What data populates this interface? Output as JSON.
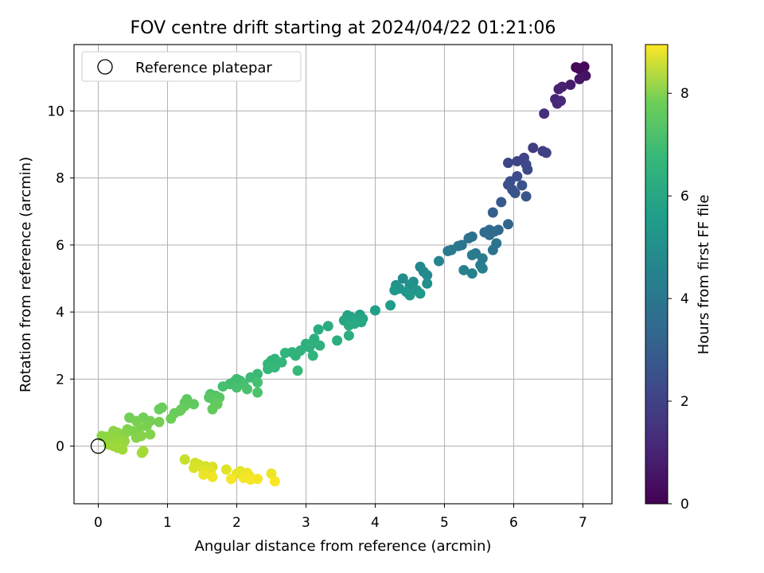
{
  "chart_data": {
    "type": "scatter",
    "title": "FOV centre drift starting at 2024/04/22 01:21:06",
    "xlabel": "Angular distance from reference (arcmin)",
    "ylabel": "Rotation from reference (arcmin)",
    "xlim": [
      -0.35,
      7.42
    ],
    "ylim": [
      -1.72,
      11.98
    ],
    "xticks": [
      0,
      1,
      2,
      3,
      4,
      5,
      6,
      7
    ],
    "yticks": [
      0,
      2,
      4,
      6,
      8,
      10
    ],
    "grid": true,
    "legend": {
      "position": "top-left",
      "entries": [
        "Reference platepar"
      ]
    },
    "reference_point": {
      "x": 0,
      "y": 0,
      "label": "Reference platepar"
    },
    "colorbar": {
      "label": "Hours from first FF file",
      "colormap": "viridis",
      "range": [
        0,
        8.95
      ],
      "ticks": [
        0,
        2,
        4,
        6,
        8
      ]
    },
    "points": [
      {
        "x": 6.9,
        "y": 11.3,
        "c": 0.15
      },
      {
        "x": 6.93,
        "y": 11.28,
        "c": 0.18
      },
      {
        "x": 7.02,
        "y": 11.32,
        "c": 0.2
      },
      {
        "x": 6.95,
        "y": 11.25,
        "c": 0.22
      },
      {
        "x": 7.04,
        "y": 11.05,
        "c": 0.45
      },
      {
        "x": 6.95,
        "y": 10.95,
        "c": 0.5
      },
      {
        "x": 6.82,
        "y": 10.78,
        "c": 0.7
      },
      {
        "x": 6.7,
        "y": 10.72,
        "c": 0.8
      },
      {
        "x": 6.65,
        "y": 10.65,
        "c": 0.85
      },
      {
        "x": 6.6,
        "y": 10.35,
        "c": 0.95
      },
      {
        "x": 6.63,
        "y": 10.22,
        "c": 1.0
      },
      {
        "x": 6.68,
        "y": 10.3,
        "c": 1.05
      },
      {
        "x": 6.44,
        "y": 9.92,
        "c": 1.2
      },
      {
        "x": 6.28,
        "y": 8.9,
        "c": 1.6
      },
      {
        "x": 6.42,
        "y": 8.8,
        "c": 1.7
      },
      {
        "x": 6.47,
        "y": 8.75,
        "c": 1.75
      },
      {
        "x": 6.15,
        "y": 8.6,
        "c": 1.8
      },
      {
        "x": 6.05,
        "y": 8.5,
        "c": 1.85
      },
      {
        "x": 5.92,
        "y": 8.45,
        "c": 1.9
      },
      {
        "x": 6.18,
        "y": 8.4,
        "c": 1.95
      },
      {
        "x": 6.2,
        "y": 8.25,
        "c": 2.0
      },
      {
        "x": 6.05,
        "y": 8.05,
        "c": 2.1
      },
      {
        "x": 5.95,
        "y": 7.9,
        "c": 2.15
      },
      {
        "x": 5.92,
        "y": 7.8,
        "c": 2.2
      },
      {
        "x": 6.12,
        "y": 7.78,
        "c": 2.25
      },
      {
        "x": 5.98,
        "y": 7.65,
        "c": 2.3
      },
      {
        "x": 6.02,
        "y": 7.55,
        "c": 2.35
      },
      {
        "x": 6.18,
        "y": 7.45,
        "c": 2.4
      },
      {
        "x": 5.82,
        "y": 7.28,
        "c": 2.5
      },
      {
        "x": 5.7,
        "y": 6.97,
        "c": 2.7
      },
      {
        "x": 5.92,
        "y": 6.62,
        "c": 2.9
      },
      {
        "x": 5.78,
        "y": 6.45,
        "c": 3.0
      },
      {
        "x": 5.65,
        "y": 6.45,
        "c": 3.05
      },
      {
        "x": 5.58,
        "y": 6.38,
        "c": 3.1
      },
      {
        "x": 5.65,
        "y": 6.3,
        "c": 3.15
      },
      {
        "x": 5.72,
        "y": 6.4,
        "c": 3.1
      },
      {
        "x": 5.4,
        "y": 6.25,
        "c": 3.3
      },
      {
        "x": 5.35,
        "y": 6.2,
        "c": 3.35
      },
      {
        "x": 5.25,
        "y": 6.0,
        "c": 3.45
      },
      {
        "x": 5.2,
        "y": 5.97,
        "c": 3.5
      },
      {
        "x": 5.75,
        "y": 6.05,
        "c": 3.4
      },
      {
        "x": 5.7,
        "y": 5.85,
        "c": 3.45
      },
      {
        "x": 5.1,
        "y": 5.85,
        "c": 3.6
      },
      {
        "x": 5.05,
        "y": 5.82,
        "c": 3.62
      },
      {
        "x": 5.45,
        "y": 5.75,
        "c": 3.65
      },
      {
        "x": 5.4,
        "y": 5.7,
        "c": 3.7
      },
      {
        "x": 5.55,
        "y": 5.6,
        "c": 3.75
      },
      {
        "x": 5.52,
        "y": 5.4,
        "c": 3.8
      },
      {
        "x": 5.55,
        "y": 5.3,
        "c": 3.85
      },
      {
        "x": 5.28,
        "y": 5.25,
        "c": 3.9
      },
      {
        "x": 5.4,
        "y": 5.15,
        "c": 3.95
      },
      {
        "x": 4.92,
        "y": 5.52,
        "c": 4.05
      },
      {
        "x": 4.65,
        "y": 5.35,
        "c": 4.15
      },
      {
        "x": 4.7,
        "y": 5.2,
        "c": 4.2
      },
      {
        "x": 4.75,
        "y": 5.1,
        "c": 4.25
      },
      {
        "x": 4.4,
        "y": 5.0,
        "c": 4.35
      },
      {
        "x": 4.55,
        "y": 4.9,
        "c": 4.4
      },
      {
        "x": 4.75,
        "y": 4.85,
        "c": 4.45
      },
      {
        "x": 4.5,
        "y": 4.8,
        "c": 4.5
      },
      {
        "x": 4.3,
        "y": 4.8,
        "c": 4.55
      },
      {
        "x": 4.35,
        "y": 4.7,
        "c": 4.6
      },
      {
        "x": 4.6,
        "y": 4.65,
        "c": 4.65
      },
      {
        "x": 4.45,
        "y": 4.6,
        "c": 4.7
      },
      {
        "x": 4.28,
        "y": 4.65,
        "c": 4.7
      },
      {
        "x": 4.65,
        "y": 4.55,
        "c": 4.75
      },
      {
        "x": 4.5,
        "y": 4.5,
        "c": 4.8
      },
      {
        "x": 4.22,
        "y": 4.2,
        "c": 4.95
      },
      {
        "x": 4.0,
        "y": 4.05,
        "c": 5.05
      },
      {
        "x": 3.78,
        "y": 3.92,
        "c": 5.1
      },
      {
        "x": 3.6,
        "y": 3.9,
        "c": 5.15
      },
      {
        "x": 3.65,
        "y": 3.85,
        "c": 5.2
      },
      {
        "x": 3.82,
        "y": 3.8,
        "c": 5.25
      },
      {
        "x": 3.72,
        "y": 3.75,
        "c": 5.3
      },
      {
        "x": 3.55,
        "y": 3.75,
        "c": 5.3
      },
      {
        "x": 3.8,
        "y": 3.7,
        "c": 5.35
      },
      {
        "x": 3.7,
        "y": 3.65,
        "c": 5.4
      },
      {
        "x": 3.62,
        "y": 3.6,
        "c": 5.45
      },
      {
        "x": 3.32,
        "y": 3.58,
        "c": 5.5
      },
      {
        "x": 3.18,
        "y": 3.48,
        "c": 5.55
      },
      {
        "x": 3.62,
        "y": 3.3,
        "c": 5.55
      },
      {
        "x": 3.12,
        "y": 3.2,
        "c": 5.6
      },
      {
        "x": 3.45,
        "y": 3.15,
        "c": 5.6
      },
      {
        "x": 3.0,
        "y": 3.05,
        "c": 5.65
      },
      {
        "x": 3.08,
        "y": 3.05,
        "c": 5.65
      },
      {
        "x": 3.2,
        "y": 3.0,
        "c": 5.7
      },
      {
        "x": 3.05,
        "y": 2.95,
        "c": 5.7
      },
      {
        "x": 2.92,
        "y": 2.85,
        "c": 5.75
      },
      {
        "x": 2.8,
        "y": 2.8,
        "c": 5.75
      },
      {
        "x": 2.7,
        "y": 2.78,
        "c": 5.8
      },
      {
        "x": 3.1,
        "y": 2.7,
        "c": 5.8
      },
      {
        "x": 2.85,
        "y": 2.7,
        "c": 5.8
      },
      {
        "x": 2.55,
        "y": 2.6,
        "c": 5.85
      },
      {
        "x": 2.5,
        "y": 2.55,
        "c": 5.85
      },
      {
        "x": 2.65,
        "y": 2.5,
        "c": 5.9
      },
      {
        "x": 2.45,
        "y": 2.45,
        "c": 5.9
      },
      {
        "x": 2.55,
        "y": 2.35,
        "c": 5.95
      },
      {
        "x": 2.45,
        "y": 2.3,
        "c": 5.95
      },
      {
        "x": 2.88,
        "y": 2.25,
        "c": 6.0
      },
      {
        "x": 2.3,
        "y": 2.15,
        "c": 6.05
      },
      {
        "x": 2.2,
        "y": 2.05,
        "c": 6.1
      },
      {
        "x": 2.0,
        "y": 2.0,
        "c": 6.15
      },
      {
        "x": 2.05,
        "y": 1.95,
        "c": 6.15
      },
      {
        "x": 1.95,
        "y": 1.9,
        "c": 6.2
      },
      {
        "x": 1.9,
        "y": 1.85,
        "c": 6.2
      },
      {
        "x": 2.1,
        "y": 1.85,
        "c": 6.25
      },
      {
        "x": 2.3,
        "y": 1.9,
        "c": 6.25
      },
      {
        "x": 1.8,
        "y": 1.78,
        "c": 6.3
      },
      {
        "x": 2.0,
        "y": 1.75,
        "c": 6.3
      },
      {
        "x": 2.15,
        "y": 1.7,
        "c": 6.35
      },
      {
        "x": 2.3,
        "y": 1.6,
        "c": 6.4
      },
      {
        "x": 1.62,
        "y": 1.55,
        "c": 6.5
      },
      {
        "x": 1.7,
        "y": 1.5,
        "c": 6.55
      },
      {
        "x": 1.6,
        "y": 1.45,
        "c": 6.6
      },
      {
        "x": 1.75,
        "y": 1.45,
        "c": 6.6
      },
      {
        "x": 1.68,
        "y": 1.35,
        "c": 6.65
      },
      {
        "x": 1.28,
        "y": 1.4,
        "c": 6.7
      },
      {
        "x": 1.25,
        "y": 1.3,
        "c": 6.7
      },
      {
        "x": 1.38,
        "y": 1.25,
        "c": 6.75
      },
      {
        "x": 1.25,
        "y": 1.2,
        "c": 6.75
      },
      {
        "x": 1.2,
        "y": 1.1,
        "c": 6.8
      },
      {
        "x": 1.72,
        "y": 1.25,
        "c": 6.8
      },
      {
        "x": 1.65,
        "y": 1.1,
        "c": 6.8
      },
      {
        "x": 1.18,
        "y": 1.05,
        "c": 6.85
      },
      {
        "x": 1.1,
        "y": 0.98,
        "c": 6.85
      },
      {
        "x": 0.92,
        "y": 1.15,
        "c": 6.9
      },
      {
        "x": 0.88,
        "y": 1.1,
        "c": 6.9
      },
      {
        "x": 1.05,
        "y": 0.82,
        "c": 6.95
      },
      {
        "x": 0.45,
        "y": 0.85,
        "c": 7.0
      },
      {
        "x": 0.65,
        "y": 0.85,
        "c": 7.0
      },
      {
        "x": 0.75,
        "y": 0.75,
        "c": 7.05
      },
      {
        "x": 0.88,
        "y": 0.72,
        "c": 7.05
      },
      {
        "x": 0.55,
        "y": 0.75,
        "c": 7.1
      },
      {
        "x": 0.7,
        "y": 0.6,
        "c": 7.1
      },
      {
        "x": 0.6,
        "y": 0.55,
        "c": 7.15
      },
      {
        "x": 0.42,
        "y": 0.5,
        "c": 7.2
      },
      {
        "x": 0.5,
        "y": 0.45,
        "c": 7.2
      },
      {
        "x": 0.4,
        "y": 0.4,
        "c": 7.25
      },
      {
        "x": 0.75,
        "y": 0.35,
        "c": 7.25
      },
      {
        "x": 0.62,
        "y": 0.3,
        "c": 7.3
      },
      {
        "x": 0.55,
        "y": 0.25,
        "c": 7.3
      },
      {
        "x": 0.35,
        "y": 0.35,
        "c": 7.3
      },
      {
        "x": 0.28,
        "y": 0.4,
        "c": 7.35
      },
      {
        "x": 0.22,
        "y": 0.45,
        "c": 7.35
      },
      {
        "x": 0.05,
        "y": 0.3,
        "c": 7.4
      },
      {
        "x": 0.12,
        "y": 0.28,
        "c": 7.4
      },
      {
        "x": 0.2,
        "y": 0.25,
        "c": 7.45
      },
      {
        "x": 0.3,
        "y": 0.2,
        "c": 7.45
      },
      {
        "x": 0.38,
        "y": 0.15,
        "c": 7.5
      },
      {
        "x": 0.25,
        "y": 0.1,
        "c": 7.5
      },
      {
        "x": 0.15,
        "y": 0.05,
        "c": 7.55
      },
      {
        "x": 0.32,
        "y": 0.05,
        "c": 7.55
      },
      {
        "x": 0.22,
        "y": 0.0,
        "c": 7.6
      },
      {
        "x": 0.28,
        "y": -0.05,
        "c": 7.6
      },
      {
        "x": 0.35,
        "y": -0.1,
        "c": 7.65
      },
      {
        "x": 0.65,
        "y": -0.15,
        "c": 7.7
      },
      {
        "x": 0.63,
        "y": -0.2,
        "c": 7.7
      },
      {
        "x": 1.25,
        "y": -0.4,
        "c": 8.2
      },
      {
        "x": 1.4,
        "y": -0.5,
        "c": 8.3
      },
      {
        "x": 1.45,
        "y": -0.55,
        "c": 8.35
      },
      {
        "x": 1.55,
        "y": -0.6,
        "c": 8.4
      },
      {
        "x": 1.65,
        "y": -0.62,
        "c": 8.45
      },
      {
        "x": 1.38,
        "y": -0.65,
        "c": 8.45
      },
      {
        "x": 1.52,
        "y": -0.7,
        "c": 8.5
      },
      {
        "x": 1.85,
        "y": -0.7,
        "c": 8.55
      },
      {
        "x": 1.62,
        "y": -0.75,
        "c": 8.55
      },
      {
        "x": 2.05,
        "y": -0.75,
        "c": 8.6
      },
      {
        "x": 2.15,
        "y": -0.8,
        "c": 8.65
      },
      {
        "x": 2.0,
        "y": -0.82,
        "c": 8.65
      },
      {
        "x": 2.5,
        "y": -0.82,
        "c": 8.7
      },
      {
        "x": 1.52,
        "y": -0.85,
        "c": 8.7
      },
      {
        "x": 2.18,
        "y": -0.88,
        "c": 8.75
      },
      {
        "x": 1.65,
        "y": -0.92,
        "c": 8.75
      },
      {
        "x": 2.1,
        "y": -0.95,
        "c": 8.8
      },
      {
        "x": 2.3,
        "y": -0.98,
        "c": 8.8
      },
      {
        "x": 1.92,
        "y": -0.98,
        "c": 8.85
      },
      {
        "x": 2.2,
        "y": -1.0,
        "c": 8.85
      },
      {
        "x": 2.55,
        "y": -1.05,
        "c": 8.9
      }
    ]
  }
}
